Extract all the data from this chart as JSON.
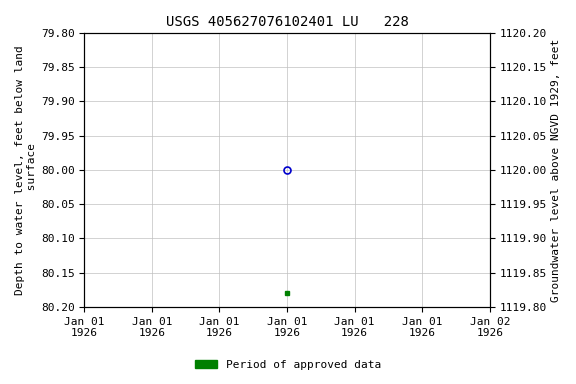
{
  "title": "USGS 405627076102401 LU   228",
  "ylabel_left": "Depth to water level, feet below land\n surface",
  "ylabel_right": "Groundwater level above NGVD 1929, feet",
  "ylim_left": [
    80.2,
    79.8
  ],
  "ylim_right": [
    1119.8,
    1120.2
  ],
  "yticks_left": [
    79.8,
    79.85,
    79.9,
    79.95,
    80.0,
    80.05,
    80.1,
    80.15,
    80.2
  ],
  "yticks_right": [
    1120.2,
    1120.15,
    1120.1,
    1120.05,
    1120.0,
    1119.95,
    1119.9,
    1119.85,
    1119.8
  ],
  "xtick_labels": [
    "Jan 01\n1926",
    "Jan 01\n1926",
    "Jan 01\n1926",
    "Jan 01\n1926",
    "Jan 01\n1926",
    "Jan 01\n1926",
    "Jan 02\n1926"
  ],
  "data_point1_x": 3.0,
  "data_point1_y": 80.0,
  "data_point2_x": 3.0,
  "data_point2_y": 80.18,
  "xlim": [
    0,
    6
  ],
  "background_color": "#ffffff",
  "grid_color": "#c0c0c0",
  "point_color_open": "#0000cc",
  "point_color_filled": "#008000",
  "legend_label": "Period of approved data",
  "legend_color": "#008000",
  "title_fontsize": 10,
  "axis_label_fontsize": 8,
  "tick_fontsize": 8,
  "font_family": "monospace"
}
